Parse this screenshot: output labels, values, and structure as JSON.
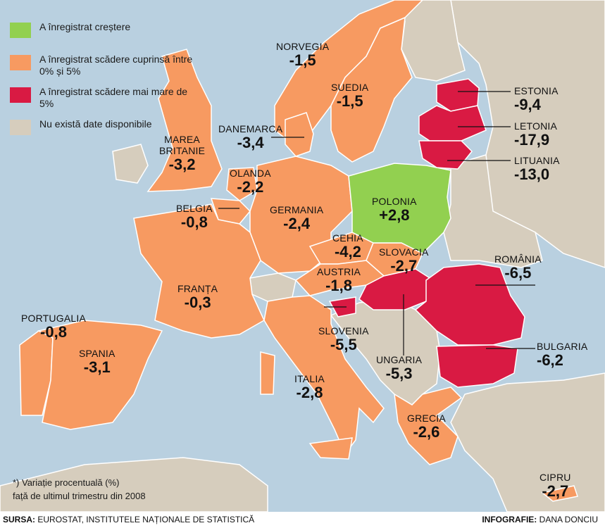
{
  "colors": {
    "sea": "#b9d0e0",
    "increase": "#92d050",
    "decrease_small": "#f79a61",
    "decrease_large": "#d91a43",
    "no_data": "#d6cdbd",
    "border": "#ffffff"
  },
  "legend": [
    {
      "color_key": "increase",
      "label": "A înregistrat creștere"
    },
    {
      "color_key": "decrease_small",
      "label": "A înregistrat scădere cuprinsă între 0% și 5%"
    },
    {
      "color_key": "decrease_large",
      "label": "A înregistrat scădere mai mare de 5%"
    },
    {
      "color_key": "no_data",
      "label": "Nu există date disponibile"
    }
  ],
  "countries": {
    "norvegia": {
      "name": "NORVEGIA",
      "value": "-1,5",
      "category": "decrease_small"
    },
    "suedia": {
      "name": "SUEDIA",
      "value": "-1,5",
      "category": "decrease_small"
    },
    "estonia": {
      "name": "ESTONIA",
      "value": "-9,4",
      "category": "decrease_large"
    },
    "letonia": {
      "name": "LETONIA",
      "value": "-17,9",
      "category": "decrease_large"
    },
    "lituania": {
      "name": "LITUANIA",
      "value": "-13,0",
      "category": "decrease_large"
    },
    "danemarca": {
      "name": "DANEMARCA",
      "value": "-3,4",
      "category": "decrease_small"
    },
    "marea_britanie": {
      "name_line1": "MAREA",
      "name_line2": "BRITANIE",
      "value": "-3,2",
      "category": "decrease_small"
    },
    "olanda": {
      "name": "OLANDA",
      "value": "-2,2",
      "category": "decrease_small"
    },
    "belgia": {
      "name": "BELGIA",
      "value": "-0,8",
      "category": "decrease_small"
    },
    "germania": {
      "name": "GERMANIA",
      "value": "-2,4",
      "category": "decrease_small"
    },
    "polonia": {
      "name": "POLONIA",
      "value": "+2,8",
      "category": "increase"
    },
    "cehia": {
      "name": "CEHIA",
      "value": "-4,2",
      "category": "decrease_small"
    },
    "slovacia": {
      "name": "SLOVACIA",
      "value": "-2,7",
      "category": "decrease_small"
    },
    "austria": {
      "name": "AUSTRIA",
      "value": "-1,8",
      "category": "decrease_small"
    },
    "romania": {
      "name": "ROMÂNIA",
      "value": "-6,5",
      "category": "decrease_large"
    },
    "franta": {
      "name": "FRANȚA",
      "value": "-0,3",
      "category": "decrease_small"
    },
    "portugalia": {
      "name": "PORTUGALIA",
      "value": "-0,8",
      "category": "decrease_small"
    },
    "spania": {
      "name": "SPANIA",
      "value": "-3,1",
      "category": "decrease_small"
    },
    "slovenia": {
      "name": "SLOVENIA",
      "value": "-5,5",
      "category": "decrease_large"
    },
    "ungaria": {
      "name": "UNGARIA",
      "value": "-5,3",
      "category": "decrease_large"
    },
    "bulgaria": {
      "name": "BULGARIA",
      "value": "-6,2",
      "category": "decrease_large"
    },
    "italia": {
      "name": "ITALIA",
      "value": "-2,8",
      "category": "decrease_small"
    },
    "grecia": {
      "name": "GRECIA",
      "value": "-2,6",
      "category": "decrease_small"
    },
    "cipru": {
      "name": "CIPRU",
      "value": "-2,7",
      "category": "decrease_small"
    }
  },
  "note": {
    "line1": "*) Variație procentuală (%)",
    "line2": "față de ultimul trimestru din 2008"
  },
  "footer": {
    "source_label": "SURSA:",
    "source_text": "EUROSTAT, INSTITUTELE NAȚIONALE DE STATISTICĂ",
    "credit_label": "INFOGRAFIE:",
    "credit_text": "DANA DONCIU"
  }
}
